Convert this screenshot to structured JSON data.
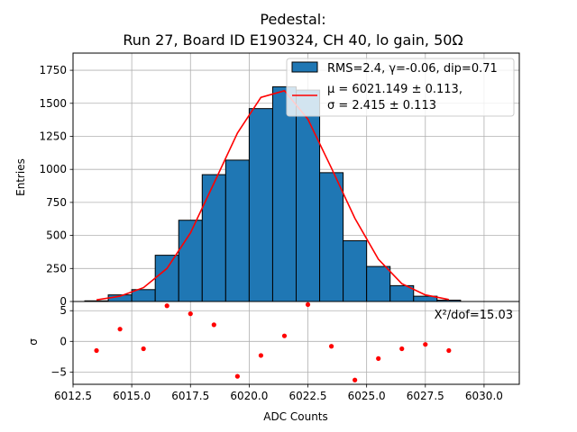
{
  "chart_data": [
    {
      "panel": "histogram",
      "type": "bar",
      "title": "Pedestal:",
      "subtitle": "Run 27, Board ID E190324, CH 40, lo gain, 50Ω",
      "xlabel": "",
      "ylabel": "Entries",
      "xlim": [
        6012.5,
        6031.5
      ],
      "ylim": [
        0,
        1880
      ],
      "yticks": [
        0,
        250,
        500,
        750,
        1000,
        1250,
        1500,
        1750
      ],
      "grid": true,
      "legend_position": "upper right",
      "bar_color": "#1f77b4",
      "fit_color": "#ff0000",
      "bins": [
        {
          "x0": 6013,
          "x1": 6014,
          "value": 5
        },
        {
          "x0": 6014,
          "x1": 6015,
          "value": 50
        },
        {
          "x0": 6015,
          "x1": 6016,
          "value": 90
        },
        {
          "x0": 6016,
          "x1": 6017,
          "value": 350
        },
        {
          "x0": 6017,
          "x1": 6018,
          "value": 615
        },
        {
          "x0": 6018,
          "x1": 6019,
          "value": 960
        },
        {
          "x0": 6019,
          "x1": 6020,
          "value": 1070
        },
        {
          "x0": 6020,
          "x1": 6021,
          "value": 1460
        },
        {
          "x0": 6021,
          "x1": 6022,
          "value": 1625
        },
        {
          "x0": 6022,
          "x1": 6023,
          "value": 1600
        },
        {
          "x0": 6023,
          "x1": 6024,
          "value": 975
        },
        {
          "x0": 6024,
          "x1": 6025,
          "value": 460
        },
        {
          "x0": 6025,
          "x1": 6026,
          "value": 265
        },
        {
          "x0": 6026,
          "x1": 6027,
          "value": 120
        },
        {
          "x0": 6027,
          "x1": 6028,
          "value": 40
        },
        {
          "x0": 6028,
          "x1": 6029,
          "value": 10
        }
      ],
      "fit_curve": {
        "x": [
          6013.5,
          6014.5,
          6015.5,
          6016.5,
          6017.5,
          6018.5,
          6019.5,
          6020.5,
          6021.5,
          6022.5,
          6023.5,
          6024.5,
          6025.5,
          6026.5,
          6027.5,
          6028.5
        ],
        "y": [
          12,
          40,
          105,
          250,
          520,
          895,
          1275,
          1545,
          1595,
          1380,
          1010,
          630,
          320,
          135,
          50,
          15
        ]
      },
      "legend": [
        {
          "marker": "bar",
          "label": "RMS=2.4, γ=-0.06, dip=0.71"
        },
        {
          "marker": "line",
          "label_line1": "μ = 6021.149 ± 0.113,",
          "label_line2": "σ = 2.415 ± 0.113"
        }
      ]
    },
    {
      "panel": "residuals",
      "type": "scatter",
      "xlabel": "ADC Counts",
      "ylabel": "σ",
      "xlim": [
        6012.5,
        6031.5
      ],
      "ylim": [
        -7,
        6.5
      ],
      "xticks": [
        6012.5,
        6015.0,
        6017.5,
        6020.0,
        6022.5,
        6025.0,
        6027.5,
        6030.0
      ],
      "xtick_labels": [
        "6012.5",
        "6015.0",
        "6017.5",
        "6020.0",
        "6022.5",
        "6025.0",
        "6027.5",
        "6030.0"
      ],
      "yticks": [
        -5,
        0,
        5
      ],
      "grid": true,
      "point_color": "#ff0000",
      "annotation": "Χ²/dof=15.03",
      "points": {
        "x": [
          6013.5,
          6014.5,
          6015.5,
          6016.5,
          6017.5,
          6018.5,
          6019.5,
          6020.5,
          6021.5,
          6022.5,
          6023.5,
          6024.5,
          6025.5,
          6026.5,
          6027.5,
          6028.5
        ],
        "y": [
          -1.5,
          2.0,
          -1.2,
          5.8,
          4.5,
          2.7,
          -5.7,
          -2.3,
          0.9,
          6.0,
          -0.8,
          -6.3,
          -2.8,
          -1.2,
          -0.5,
          -1.5
        ]
      }
    }
  ]
}
